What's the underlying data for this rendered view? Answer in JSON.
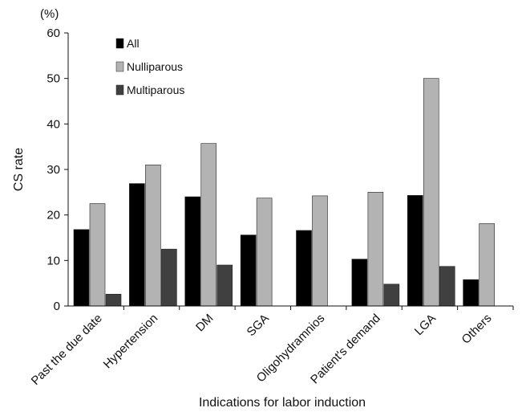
{
  "chart_data": {
    "type": "bar",
    "unit_label": "(%)",
    "xlabel": "Indications for labor induction",
    "ylabel": "CS rate",
    "ylim": [
      0,
      60
    ],
    "yticks": [
      0,
      10,
      20,
      30,
      40,
      50,
      60
    ],
    "grid": false,
    "legend_position": "top-left",
    "categories": [
      "Past the due date",
      "Hypertension",
      "DM",
      "SGA",
      "Oligohydramnios",
      "Patient's demand",
      "LGA",
      "Others"
    ],
    "series": [
      {
        "name": "All",
        "color": "#000000",
        "values": [
          16.8,
          26.9,
          24.0,
          15.6,
          16.6,
          10.3,
          24.3,
          5.8
        ]
      },
      {
        "name": "Nulliparous",
        "color": "#b3b3b3",
        "values": [
          22.5,
          31.0,
          35.7,
          23.7,
          24.2,
          25.0,
          50.0,
          18.1
        ]
      },
      {
        "name": "Multiparous",
        "color": "#404040",
        "values": [
          2.6,
          12.5,
          9.0,
          0,
          0,
          4.8,
          8.7,
          0
        ]
      }
    ]
  }
}
